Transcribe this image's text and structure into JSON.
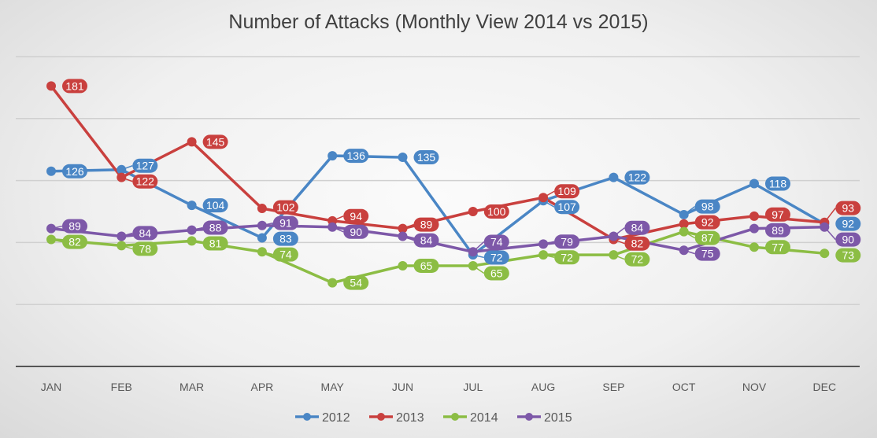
{
  "chart_data": {
    "type": "line",
    "title": "Number of Attacks (Monthly View 2014 vs 2015)",
    "categories": [
      "JAN",
      "FEB",
      "MAR",
      "APR",
      "MAY",
      "JUN",
      "JUL",
      "AUG",
      "SEP",
      "OCT",
      "NOV",
      "DEC"
    ],
    "ylim": [
      0,
      200
    ],
    "grid": true,
    "y_tick_labels_shown": false,
    "legend": "bottom",
    "series": [
      {
        "name": "2012",
        "color": "#4a86c5",
        "values": [
          126,
          127,
          104,
          83,
          136,
          135,
          72,
          107,
          122,
          98,
          118,
          92
        ]
      },
      {
        "name": "2013",
        "color": "#c9403e",
        "values": [
          181,
          122,
          145,
          102,
          94,
          89,
          100,
          109,
          82,
          92,
          97,
          93
        ]
      },
      {
        "name": "2014",
        "color": "#8cbd44",
        "values": [
          82,
          78,
          81,
          74,
          54,
          65,
          65,
          72,
          72,
          87,
          77,
          73
        ]
      },
      {
        "name": "2015",
        "color": "#7d58a8",
        "values": [
          89,
          84,
          88,
          91,
          90,
          84,
          74,
          79,
          84,
          75,
          89,
          90
        ]
      }
    ]
  }
}
